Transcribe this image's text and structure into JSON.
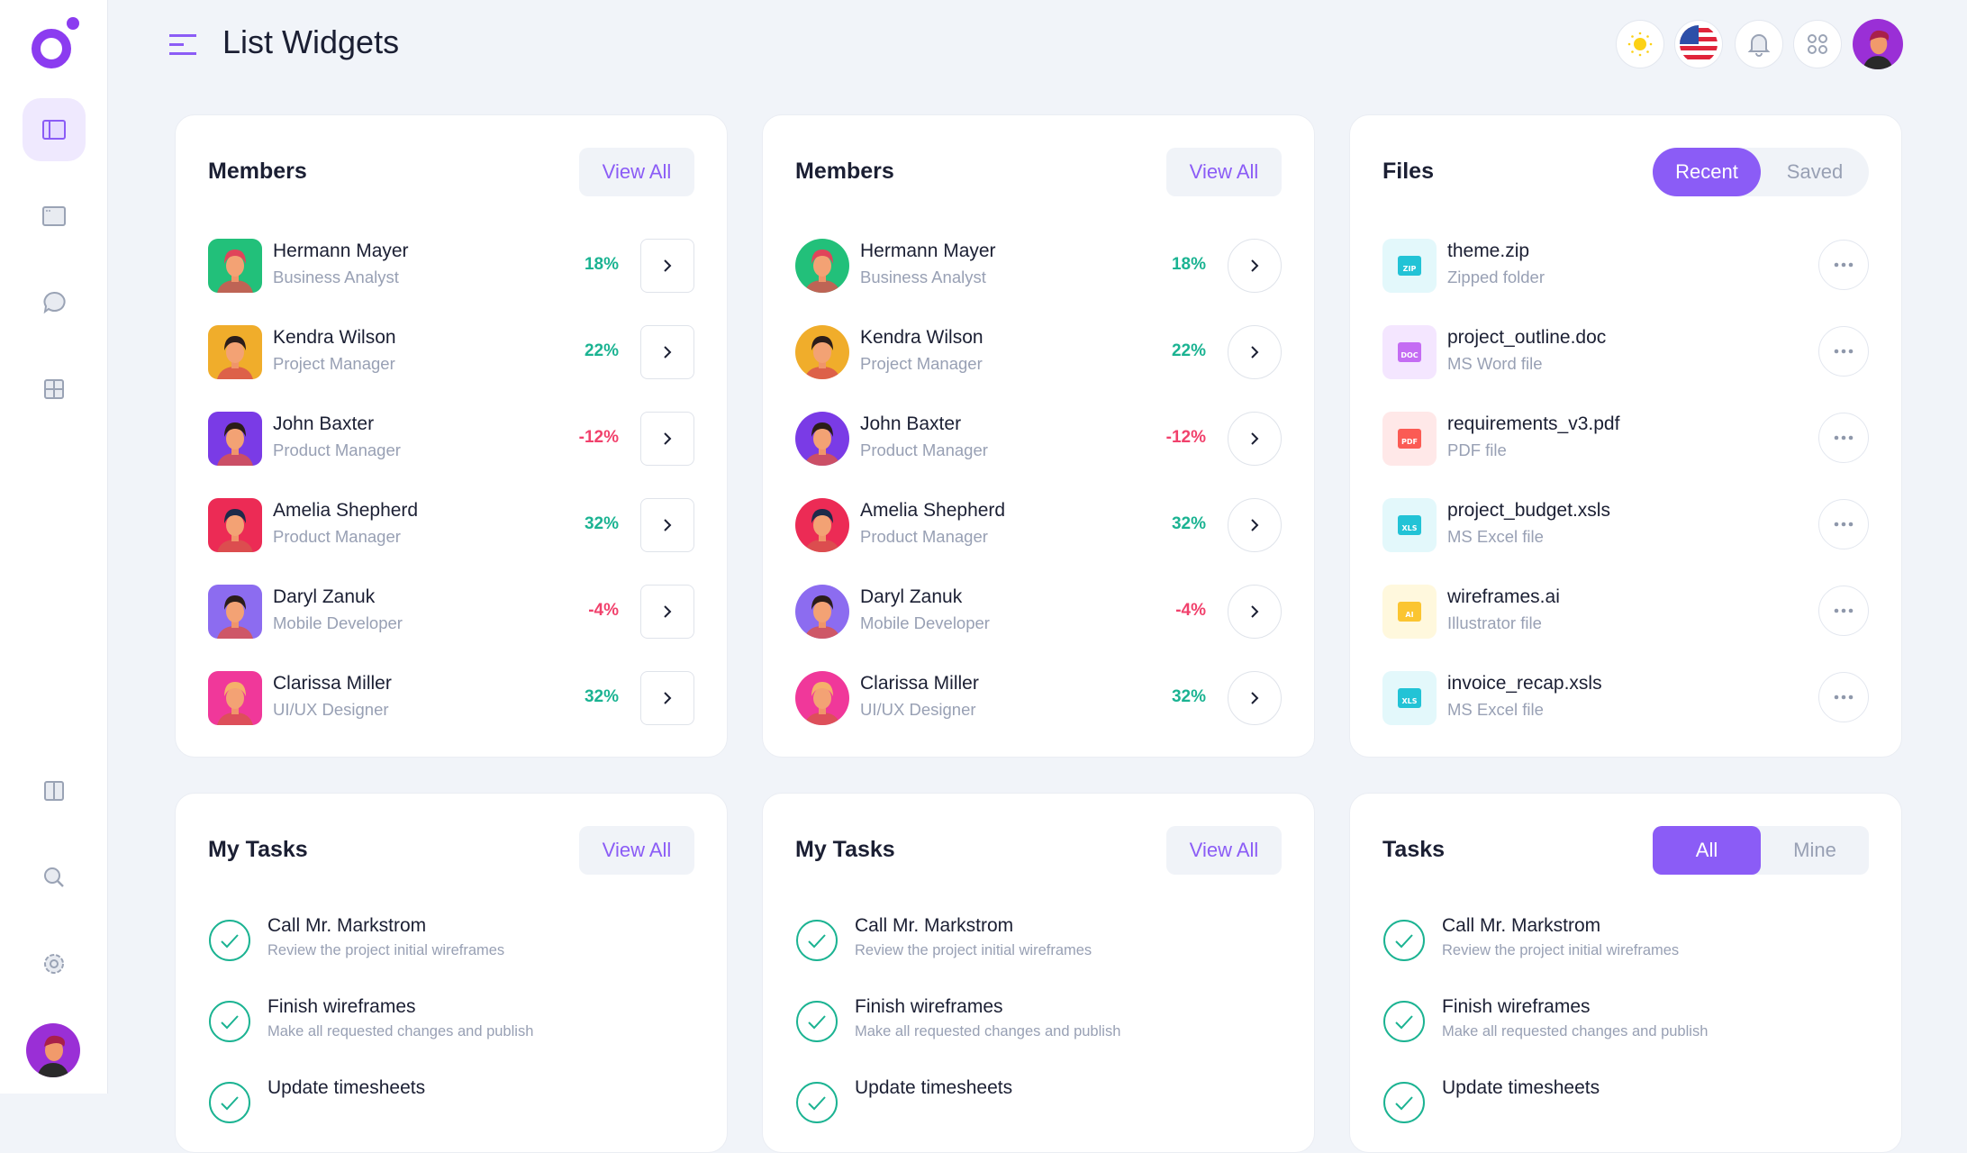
{
  "header": {
    "title": "List Widgets",
    "icons": [
      "sun-icon",
      "us-flag-icon",
      "bell-icon",
      "apps-icon",
      "user-avatar"
    ]
  },
  "sidebar": {
    "items": [
      "layout-icon",
      "window-icon",
      "chat-icon",
      "grid-icon",
      "columns-icon",
      "search-icon",
      "settings-icon"
    ]
  },
  "colors": {
    "accent": "#8b5cf6",
    "positive": "#1bb392",
    "negative": "#f1416c"
  },
  "members_cards": [
    {
      "title": "Members",
      "view_all": "View All",
      "button_style": "square"
    },
    {
      "title": "Members",
      "view_all": "View All",
      "button_style": "round"
    }
  ],
  "members": [
    {
      "name": "Hermann Mayer",
      "role": "Business Analyst",
      "change": "18%",
      "trend": "up",
      "avatar_bg": "#22c07a",
      "hair": "#e0445a"
    },
    {
      "name": "Kendra Wilson",
      "role": "Project Manager",
      "change": "22%",
      "trend": "up",
      "avatar_bg": "#f0ad2b",
      "hair": "#2b1d1a"
    },
    {
      "name": "John Baxter",
      "role": "Product Manager",
      "change": "-12%",
      "trend": "down",
      "avatar_bg": "#7a3be6",
      "hair": "#2b1d1a"
    },
    {
      "name": "Amelia Shepherd",
      "role": "Product Manager",
      "change": "32%",
      "trend": "up",
      "avatar_bg": "#ec2b55",
      "hair": "#1d2a4a"
    },
    {
      "name": "Daryl Zanuk",
      "role": "Mobile Developer",
      "change": "-4%",
      "trend": "down",
      "avatar_bg": "#8c6cf0",
      "hair": "#2b1d1a"
    },
    {
      "name": "Clarissa Miller",
      "role": "UI/UX Designer",
      "change": "32%",
      "trend": "up",
      "avatar_bg": "#f0389a",
      "hair": "#f5b06a"
    }
  ],
  "files_card": {
    "title": "Files",
    "tabs": [
      "Recent",
      "Saved"
    ],
    "active_tab": "Recent"
  },
  "files": [
    {
      "name": "theme.zip",
      "type": "Zipped folder",
      "badge": "ZIP",
      "bg": "#e3f8fb",
      "fg": "#22c3d6"
    },
    {
      "name": "project_outline.doc",
      "type": "MS Word file",
      "badge": "DOC",
      "bg": "#f4e6ff",
      "fg": "#c46cf3"
    },
    {
      "name": "requirements_v3.pdf",
      "type": "PDF file",
      "badge": "PDF",
      "bg": "#ffe8e8",
      "fg": "#fb5b54"
    },
    {
      "name": "project_budget.xsls",
      "type": "MS Excel file",
      "badge": "XLS",
      "bg": "#e3f8fb",
      "fg": "#22c3d6"
    },
    {
      "name": "wireframes.ai",
      "type": "Illustrator file",
      "badge": "AI",
      "bg": "#fff8dd",
      "fg": "#fbc531"
    },
    {
      "name": "invoice_recap.xsls",
      "type": "MS Excel file",
      "badge": "XLS",
      "bg": "#e3f8fb",
      "fg": "#22c3d6"
    }
  ],
  "task_cards": [
    {
      "title": "My Tasks",
      "view_all": "View All"
    },
    {
      "title": "My Tasks",
      "view_all": "View All"
    },
    {
      "title": "Tasks",
      "tabs": [
        "All",
        "Mine"
      ],
      "active_tab": "All"
    }
  ],
  "tasks": [
    {
      "title": "Call Mr. Markstrom",
      "desc": "Review the project initial wireframes",
      "done": true
    },
    {
      "title": "Finish wireframes",
      "desc": "Make all requested changes and publish",
      "done": true
    },
    {
      "title": "Update timesheets",
      "desc": "",
      "done": true
    }
  ]
}
